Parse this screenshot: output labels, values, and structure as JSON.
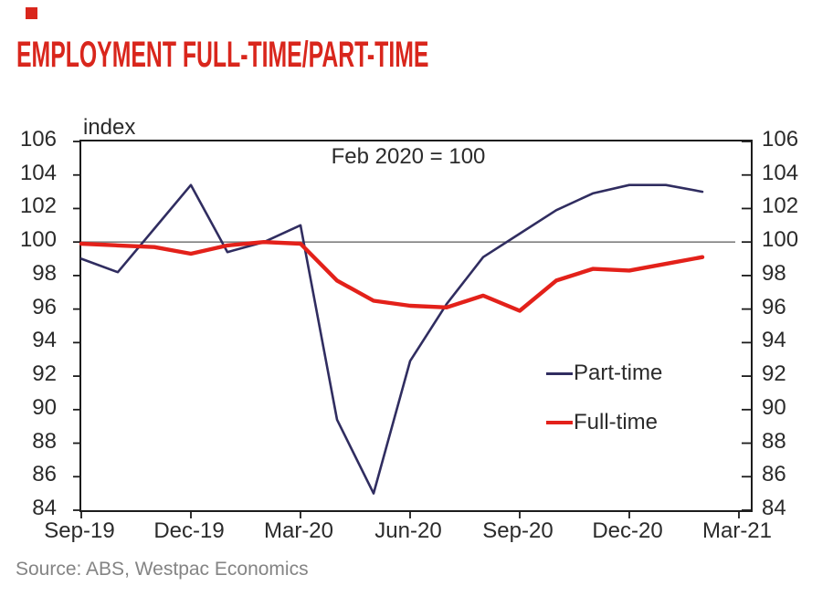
{
  "brand": {
    "accent_red": "#d9261c"
  },
  "title": "EMPLOYMENT FULL-TIME/PART-TIME",
  "chart": {
    "index_label": "index",
    "annotation": "Feb 2020 = 100",
    "legend": [
      {
        "label": "Part-time",
        "color": "#302d60",
        "thickness": 3
      },
      {
        "label": "Full-time",
        "color": "#e3211a",
        "thickness": 4.5
      }
    ]
  },
  "source": "Source: ABS, Westpac Economics",
  "chart_data": {
    "type": "line",
    "title": "EMPLOYMENT FULL-TIME/PART-TIME",
    "ylabel": "index",
    "annotation": "Feb 2020 = 100",
    "ylim": [
      84,
      106
    ],
    "y_tick_step": 2,
    "y_ticks": [
      106,
      104,
      102,
      100,
      98,
      96,
      94,
      92,
      90,
      88,
      86,
      84
    ],
    "x_tick_labels": [
      "Sep-19",
      "Dec-19",
      "Mar-20",
      "Jun-20",
      "Sep-20",
      "Dec-20",
      "Mar-21"
    ],
    "reference_line": 100,
    "grid": false,
    "legend_position": "inside-right",
    "x": [
      "Sep-19",
      "Oct-19",
      "Nov-19",
      "Dec-19",
      "Jan-20",
      "Feb-20",
      "Mar-20",
      "Apr-20",
      "May-20",
      "Jun-20",
      "Jul-20",
      "Aug-20",
      "Sep-20",
      "Oct-20",
      "Nov-20",
      "Dec-20",
      "Jan-21",
      "Feb-21"
    ],
    "series": [
      {
        "name": "Part-time",
        "color": "#302d60",
        "width": 2.6,
        "values": [
          99.0,
          98.2,
          100.8,
          103.4,
          99.4,
          100.0,
          101.0,
          89.4,
          85.0,
          92.9,
          96.3,
          99.1,
          100.5,
          101.9,
          102.9,
          103.4,
          103.4,
          103.0
        ]
      },
      {
        "name": "Full-time",
        "color": "#e3211a",
        "width": 4.4,
        "values": [
          99.9,
          99.8,
          99.7,
          99.3,
          99.8,
          100.0,
          99.9,
          97.7,
          96.5,
          96.2,
          96.1,
          96.8,
          95.9,
          97.7,
          98.4,
          98.3,
          98.7,
          99.1
        ]
      }
    ]
  }
}
